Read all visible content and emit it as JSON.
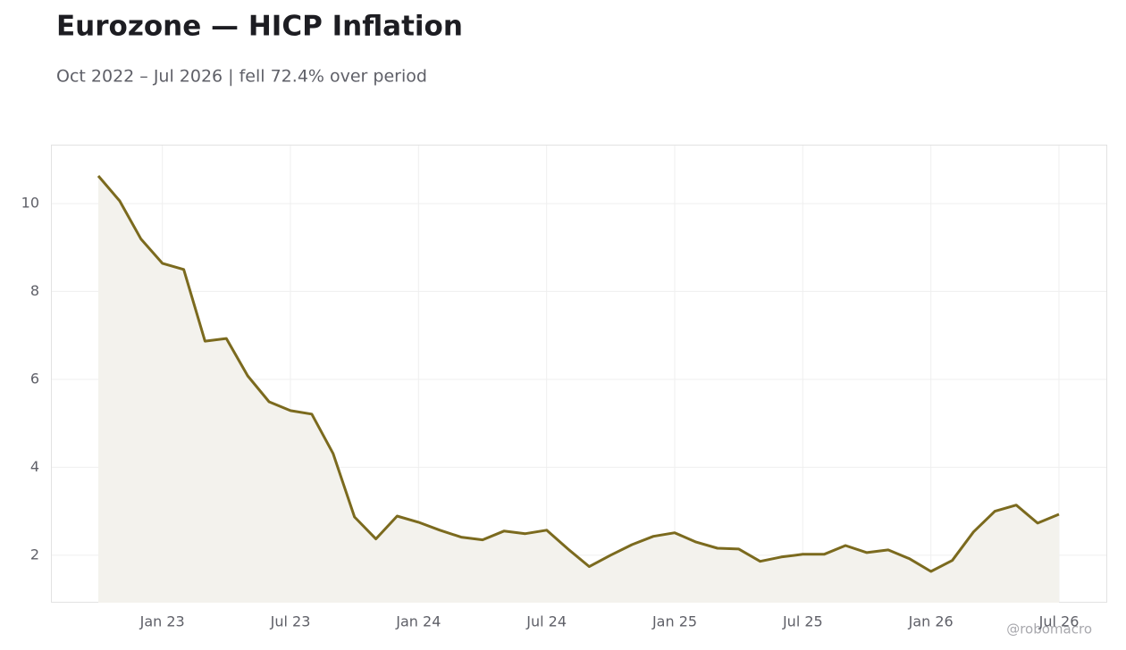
{
  "chart_data": {
    "type": "area-line",
    "title": "Eurozone — HICP Inflation",
    "subtitle": "Oct 2022 – Jul 2026 | fell 72.4% over period",
    "watermark": "@robomacro",
    "color": "#7b6a1e",
    "fill_color": "#f3f2ed",
    "grid": true,
    "x": [
      "2022-10",
      "2022-11",
      "2022-12",
      "2023-01",
      "2023-02",
      "2023-03",
      "2023-04",
      "2023-05",
      "2023-06",
      "2023-07",
      "2023-08",
      "2023-09",
      "2023-10",
      "2023-11",
      "2023-12",
      "2024-01",
      "2024-02",
      "2024-03",
      "2024-04",
      "2024-05",
      "2024-06",
      "2024-07",
      "2024-08",
      "2024-09",
      "2024-10",
      "2024-11",
      "2024-12",
      "2025-01",
      "2025-02",
      "2025-03",
      "2025-04",
      "2025-05",
      "2025-06",
      "2025-07",
      "2025-08",
      "2025-09",
      "2025-10",
      "2025-11",
      "2025-12",
      "2026-01",
      "2026-02",
      "2026-03",
      "2026-04",
      "2026-05",
      "2026-06",
      "2026-07"
    ],
    "values": [
      10.63,
      10.06,
      9.19,
      8.64,
      8.5,
      6.87,
      6.93,
      6.08,
      5.49,
      5.29,
      5.21,
      4.31,
      2.87,
      2.37,
      2.89,
      2.75,
      2.57,
      2.41,
      2.35,
      2.55,
      2.49,
      2.57,
      2.14,
      1.74,
      2.0,
      2.24,
      2.43,
      2.51,
      2.3,
      2.16,
      2.14,
      1.86,
      1.96,
      2.02,
      2.02,
      2.22,
      2.06,
      2.12,
      1.92,
      1.63,
      1.88,
      2.53,
      3.0,
      3.14,
      2.73,
      2.93
    ],
    "ylim": [
      0.92,
      11.34
    ],
    "yticks": [
      2,
      4,
      6,
      8,
      10
    ],
    "xticks": [
      {
        "value": "2023-01",
        "label": "Jan 23"
      },
      {
        "value": "2023-07",
        "label": "Jul 23"
      },
      {
        "value": "2024-01",
        "label": "Jan 24"
      },
      {
        "value": "2024-07",
        "label": "Jul 24"
      },
      {
        "value": "2025-01",
        "label": "Jan 25"
      },
      {
        "value": "2025-07",
        "label": "Jul 25"
      },
      {
        "value": "2026-01",
        "label": "Jan 26"
      },
      {
        "value": "2026-07",
        "label": "Jul 26"
      }
    ]
  }
}
